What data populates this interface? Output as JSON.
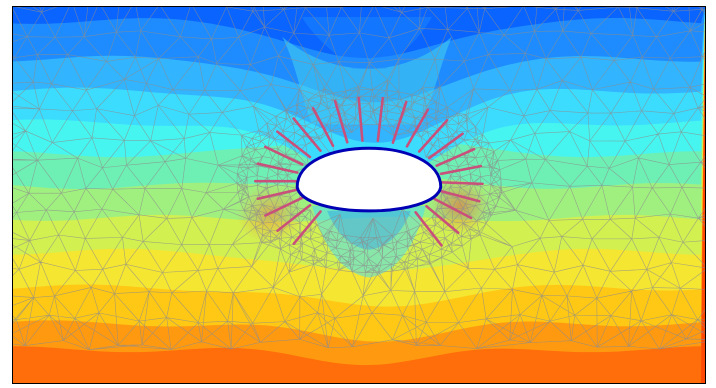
{
  "figure": {
    "kind": "finite-element contour plot",
    "colormap": [
      "#0a64ff",
      "#1e8cff",
      "#32b4ff",
      "#3cdcff",
      "#46f5f0",
      "#6ef0b4",
      "#a0f080",
      "#d2f050",
      "#f5e632",
      "#ffc814",
      "#ff9a10",
      "#ff6e0a",
      "#ff4a05"
    ],
    "mesh_line_color": "#8c8c8c",
    "opening_outline_color": "#0000b4",
    "opening_fill_color": "#ffffff",
    "bolt_color": "#c8507a",
    "bolt_count": 24,
    "legend": "none",
    "axes": "none"
  }
}
